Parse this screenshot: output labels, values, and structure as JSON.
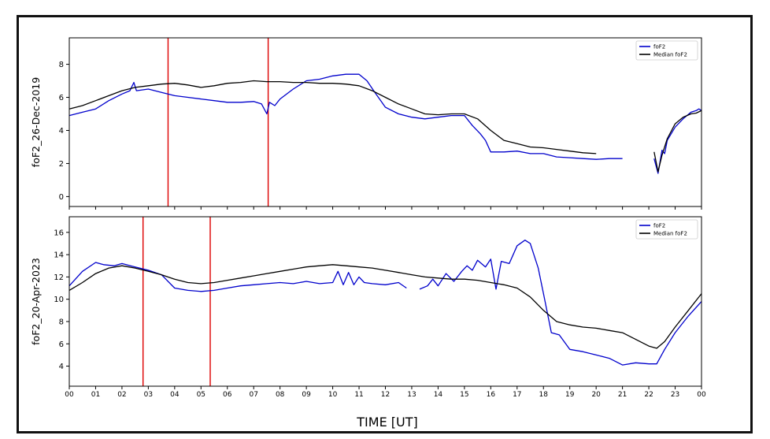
{
  "figure": {
    "xlabel": "TIME [UT]"
  },
  "chart_data": [
    {
      "type": "line",
      "ylabel": "foF2_26-Dec-2019",
      "ylim": [
        -0.6,
        9.6
      ],
      "yticks": [
        0,
        2,
        4,
        6,
        8
      ],
      "xticks": [
        "00",
        "01",
        "02",
        "03",
        "04",
        "05",
        "06",
        "07",
        "08",
        "09",
        "10",
        "11",
        "12",
        "13",
        "14",
        "15",
        "16",
        "17",
        "18",
        "19",
        "20",
        "21",
        "22",
        "23",
        "00"
      ],
      "xlim": [
        0,
        24
      ],
      "legend": {
        "position": "top-right",
        "entries": [
          "foF2",
          "Median foF2"
        ]
      },
      "vlines": [
        3.75,
        7.55
      ],
      "series": [
        {
          "name": "foF2",
          "color": "#0000cc",
          "segments": [
            [
              [
                0,
                4.9
              ],
              [
                0.5,
                5.1
              ],
              [
                1,
                5.3
              ],
              [
                1.5,
                5.8
              ],
              [
                2,
                6.2
              ],
              [
                2.3,
                6.4
              ],
              [
                2.45,
                6.9
              ],
              [
                2.55,
                6.4
              ],
              [
                3,
                6.5
              ],
              [
                3.5,
                6.3
              ],
              [
                4,
                6.1
              ],
              [
                4.5,
                6.0
              ],
              [
                5,
                5.9
              ],
              [
                5.5,
                5.8
              ],
              [
                6,
                5.7
              ],
              [
                6.5,
                5.7
              ],
              [
                7,
                5.75
              ],
              [
                7.3,
                5.6
              ],
              [
                7.5,
                5.0
              ],
              [
                7.6,
                5.7
              ],
              [
                7.8,
                5.5
              ],
              [
                8,
                5.9
              ],
              [
                8.5,
                6.5
              ],
              [
                9,
                7.0
              ],
              [
                9.5,
                7.1
              ],
              [
                10,
                7.3
              ],
              [
                10.5,
                7.4
              ],
              [
                11,
                7.4
              ],
              [
                11.3,
                7.0
              ],
              [
                11.6,
                6.3
              ],
              [
                12,
                5.4
              ],
              [
                12.5,
                5.0
              ],
              [
                13,
                4.8
              ],
              [
                13.5,
                4.7
              ],
              [
                14,
                4.8
              ],
              [
                14.5,
                4.9
              ],
              [
                15,
                4.9
              ],
              [
                15.3,
                4.3
              ],
              [
                15.6,
                3.8
              ],
              [
                15.8,
                3.4
              ],
              [
                16,
                2.7
              ],
              [
                16.5,
                2.7
              ],
              [
                17,
                2.75
              ],
              [
                17.5,
                2.6
              ],
              [
                18,
                2.6
              ],
              [
                18.5,
                2.4
              ],
              [
                19,
                2.35
              ],
              [
                19.5,
                2.3
              ],
              [
                20,
                2.25
              ],
              [
                20.5,
                2.3
              ],
              [
                21,
                2.3
              ]
            ],
            [
              [
                22.2,
                2.3
              ],
              [
                22.35,
                1.4
              ],
              [
                22.5,
                2.8
              ],
              [
                22.6,
                2.6
              ],
              [
                22.7,
                3.4
              ],
              [
                23,
                4.2
              ],
              [
                23.3,
                4.7
              ],
              [
                23.6,
                5.1
              ],
              [
                23.8,
                5.2
              ],
              [
                23.9,
                5.3
              ],
              [
                24,
                5.2
              ]
            ]
          ]
        },
        {
          "name": "Median foF2",
          "color": "#000000",
          "segments": [
            [
              [
                0,
                5.3
              ],
              [
                0.5,
                5.5
              ],
              [
                1,
                5.8
              ],
              [
                1.5,
                6.1
              ],
              [
                2,
                6.4
              ],
              [
                2.5,
                6.6
              ],
              [
                3,
                6.7
              ],
              [
                3.5,
                6.8
              ],
              [
                4,
                6.85
              ],
              [
                4.5,
                6.75
              ],
              [
                5,
                6.6
              ],
              [
                5.5,
                6.7
              ],
              [
                6,
                6.85
              ],
              [
                6.5,
                6.9
              ],
              [
                7,
                7.0
              ],
              [
                7.5,
                6.95
              ],
              [
                8,
                6.95
              ],
              [
                8.5,
                6.9
              ],
              [
                9,
                6.9
              ],
              [
                9.5,
                6.85
              ],
              [
                10,
                6.85
              ],
              [
                10.5,
                6.8
              ],
              [
                11,
                6.7
              ],
              [
                11.5,
                6.4
              ],
              [
                12,
                6.0
              ],
              [
                12.5,
                5.6
              ],
              [
                13,
                5.3
              ],
              [
                13.5,
                5.0
              ],
              [
                14,
                4.95
              ],
              [
                14.5,
                5.0
              ],
              [
                15,
                5.0
              ],
              [
                15.5,
                4.7
              ],
              [
                16,
                4.0
              ],
              [
                16.5,
                3.4
              ],
              [
                17,
                3.2
              ],
              [
                17.5,
                3.0
              ],
              [
                18,
                2.95
              ],
              [
                18.5,
                2.85
              ],
              [
                19,
                2.75
              ],
              [
                19.5,
                2.65
              ],
              [
                20,
                2.6
              ]
            ],
            [
              [
                22.2,
                2.7
              ],
              [
                22.35,
                1.5
              ],
              [
                22.5,
                2.5
              ],
              [
                22.7,
                3.5
              ],
              [
                23,
                4.4
              ],
              [
                23.3,
                4.8
              ],
              [
                23.6,
                5.0
              ],
              [
                23.8,
                5.05
              ],
              [
                24,
                5.2
              ]
            ]
          ]
        }
      ]
    },
    {
      "type": "line",
      "ylabel": "foF2_20-Apr-2023",
      "ylim": [
        2.2,
        17.4
      ],
      "yticks": [
        4,
        6,
        8,
        10,
        12,
        14,
        16
      ],
      "xticks": [
        "00",
        "01",
        "02",
        "03",
        "04",
        "05",
        "06",
        "07",
        "08",
        "09",
        "10",
        "11",
        "12",
        "13",
        "14",
        "15",
        "16",
        "17",
        "18",
        "19",
        "20",
        "21",
        "22",
        "23",
        "00"
      ],
      "xlim": [
        0,
        24
      ],
      "legend": {
        "position": "top-right",
        "entries": [
          "foF2",
          "Median foF2"
        ]
      },
      "vlines": [
        2.8,
        5.35
      ],
      "series": [
        {
          "name": "foF2",
          "color": "#0000cc",
          "segments": [
            [
              [
                0,
                11.2
              ],
              [
                0.5,
                12.5
              ],
              [
                1,
                13.3
              ],
              [
                1.3,
                13.1
              ],
              [
                1.7,
                13.0
              ],
              [
                2,
                13.2
              ],
              [
                2.5,
                12.9
              ],
              [
                3,
                12.6
              ],
              [
                3.5,
                12.2
              ],
              [
                4,
                11.0
              ],
              [
                4.5,
                10.8
              ],
              [
                5,
                10.7
              ],
              [
                5.5,
                10.8
              ],
              [
                6,
                11.0
              ],
              [
                6.5,
                11.2
              ],
              [
                7,
                11.3
              ],
              [
                7.5,
                11.4
              ],
              [
                8,
                11.5
              ],
              [
                8.5,
                11.4
              ],
              [
                9,
                11.6
              ],
              [
                9.5,
                11.4
              ],
              [
                10,
                11.5
              ],
              [
                10.2,
                12.5
              ],
              [
                10.4,
                11.3
              ],
              [
                10.6,
                12.4
              ],
              [
                10.8,
                11.3
              ],
              [
                11,
                12.0
              ],
              [
                11.2,
                11.5
              ],
              [
                11.5,
                11.4
              ],
              [
                12,
                11.3
              ],
              [
                12.5,
                11.5
              ],
              [
                12.8,
                11.0
              ]
            ],
            [
              [
                13.3,
                10.9
              ],
              [
                13.6,
                11.2
              ],
              [
                13.8,
                11.8
              ],
              [
                14,
                11.2
              ],
              [
                14.3,
                12.3
              ],
              [
                14.6,
                11.6
              ],
              [
                14.9,
                12.5
              ],
              [
                15.1,
                13.0
              ],
              [
                15.3,
                12.6
              ],
              [
                15.5,
                13.5
              ],
              [
                15.8,
                12.9
              ],
              [
                16,
                13.6
              ],
              [
                16.2,
                10.9
              ],
              [
                16.4,
                13.4
              ],
              [
                16.7,
                13.2
              ],
              [
                17,
                14.8
              ],
              [
                17.3,
                15.3
              ],
              [
                17.5,
                15.0
              ],
              [
                17.8,
                12.8
              ],
              [
                18,
                10.5
              ],
              [
                18.3,
                7.0
              ],
              [
                18.6,
                6.8
              ],
              [
                19,
                5.5
              ],
              [
                19.5,
                5.3
              ],
              [
                20,
                5.0
              ],
              [
                20.5,
                4.7
              ],
              [
                21,
                4.1
              ],
              [
                21.5,
                4.3
              ],
              [
                22,
                4.2
              ],
              [
                22.3,
                4.2
              ],
              [
                22.6,
                5.5
              ],
              [
                23,
                7.0
              ],
              [
                23.5,
                8.5
              ],
              [
                24,
                9.8
              ]
            ]
          ]
        },
        {
          "name": "Median foF2",
          "color": "#000000",
          "segments": [
            [
              [
                0,
                10.8
              ],
              [
                0.5,
                11.5
              ],
              [
                1,
                12.3
              ],
              [
                1.5,
                12.8
              ],
              [
                2,
                13.0
              ],
              [
                2.5,
                12.8
              ],
              [
                3,
                12.5
              ],
              [
                3.5,
                12.2
              ],
              [
                4,
                11.8
              ],
              [
                4.5,
                11.5
              ],
              [
                5,
                11.4
              ],
              [
                5.5,
                11.5
              ],
              [
                6,
                11.7
              ],
              [
                6.5,
                11.9
              ],
              [
                7,
                12.1
              ],
              [
                7.5,
                12.3
              ],
              [
                8,
                12.5
              ],
              [
                8.5,
                12.7
              ],
              [
                9,
                12.9
              ],
              [
                9.5,
                13.0
              ],
              [
                10,
                13.1
              ],
              [
                10.5,
                13.0
              ],
              [
                11,
                12.9
              ],
              [
                11.5,
                12.8
              ],
              [
                12,
                12.6
              ],
              [
                12.5,
                12.4
              ],
              [
                13,
                12.2
              ],
              [
                13.5,
                12.0
              ],
              [
                14,
                11.9
              ],
              [
                14.5,
                11.8
              ],
              [
                15,
                11.8
              ],
              [
                15.5,
                11.7
              ],
              [
                16,
                11.5
              ],
              [
                16.5,
                11.3
              ],
              [
                17,
                11.0
              ],
              [
                17.5,
                10.2
              ],
              [
                18,
                9.0
              ],
              [
                18.5,
                8.0
              ],
              [
                19,
                7.7
              ],
              [
                19.5,
                7.5
              ],
              [
                20,
                7.4
              ],
              [
                20.5,
                7.2
              ],
              [
                21,
                7.0
              ],
              [
                21.5,
                6.4
              ],
              [
                22,
                5.8
              ],
              [
                22.3,
                5.6
              ],
              [
                22.6,
                6.2
              ],
              [
                23,
                7.5
              ],
              [
                23.5,
                9.0
              ],
              [
                24,
                10.5
              ]
            ]
          ]
        }
      ]
    }
  ]
}
